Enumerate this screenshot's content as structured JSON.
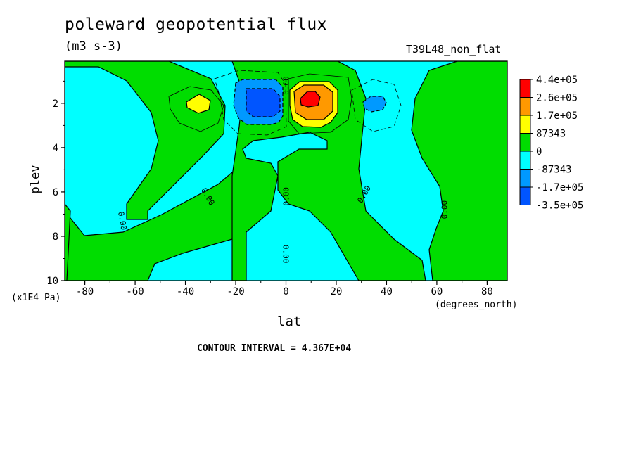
{
  "header": {
    "title": "poleward geopotential flux",
    "units": "(m3 s-3)",
    "run_id": "T39L48_non_flat",
    "contour_note": "CONTOUR INTERVAL = 4.367E+04"
  },
  "chart_data": {
    "type": "heatmap",
    "title": "poleward geopotential flux",
    "units": "(m3 s-3)",
    "xlabel": "lat",
    "xlabel_units": "(degrees_north)",
    "ylabel": "plev",
    "ylabel_units": "(x1E4 Pa)",
    "xlim": [
      -88,
      88
    ],
    "ylim": [
      10,
      0.1
    ],
    "y_inverted": true,
    "x_ticks": [
      -80,
      -60,
      -40,
      -20,
      0,
      20,
      40,
      60,
      80
    ],
    "x_tick_labels": [
      "-80",
      "-60",
      "-40",
      "-20",
      "0",
      "20",
      "40",
      "60",
      "80"
    ],
    "y_ticks": [
      2,
      4,
      6,
      8,
      10
    ],
    "y_tick_labels": [
      "2",
      "4",
      "6",
      "8",
      "10"
    ],
    "contour_interval": 43670,
    "contour_labels": [
      "0.00",
      "0.00",
      "0.00",
      "0.00",
      "0.00",
      "0.00",
      "0.00",
      "0.00"
    ],
    "colorbar": {
      "levels": [
        "4.4e+05",
        "2.6e+05",
        "1.7e+05",
        "87343",
        "0",
        "-87343",
        "-1.7e+05",
        "-3.5e+05"
      ],
      "colors": [
        "#ff0000",
        "#ff9900",
        "#ffff00",
        "#00dd00",
        "#00ffff",
        "#0099ff",
        "#0055ff"
      ]
    },
    "features": [
      {
        "kind": "max",
        "lat": 8,
        "plev": 1.8,
        "level": "4.4e+05",
        "color": "#ff0000"
      },
      {
        "kind": "min",
        "lat": -10,
        "plev": 2.0,
        "level": "-3.5e+05",
        "color": "#0055ff"
      },
      {
        "kind": "max",
        "lat": -35,
        "plev": 2.0,
        "level": "87343",
        "color": "#ffff00"
      },
      {
        "kind": "min",
        "lat": 35,
        "plev": 2.0,
        "level": "-87343",
        "color": "#0099ff"
      }
    ]
  }
}
